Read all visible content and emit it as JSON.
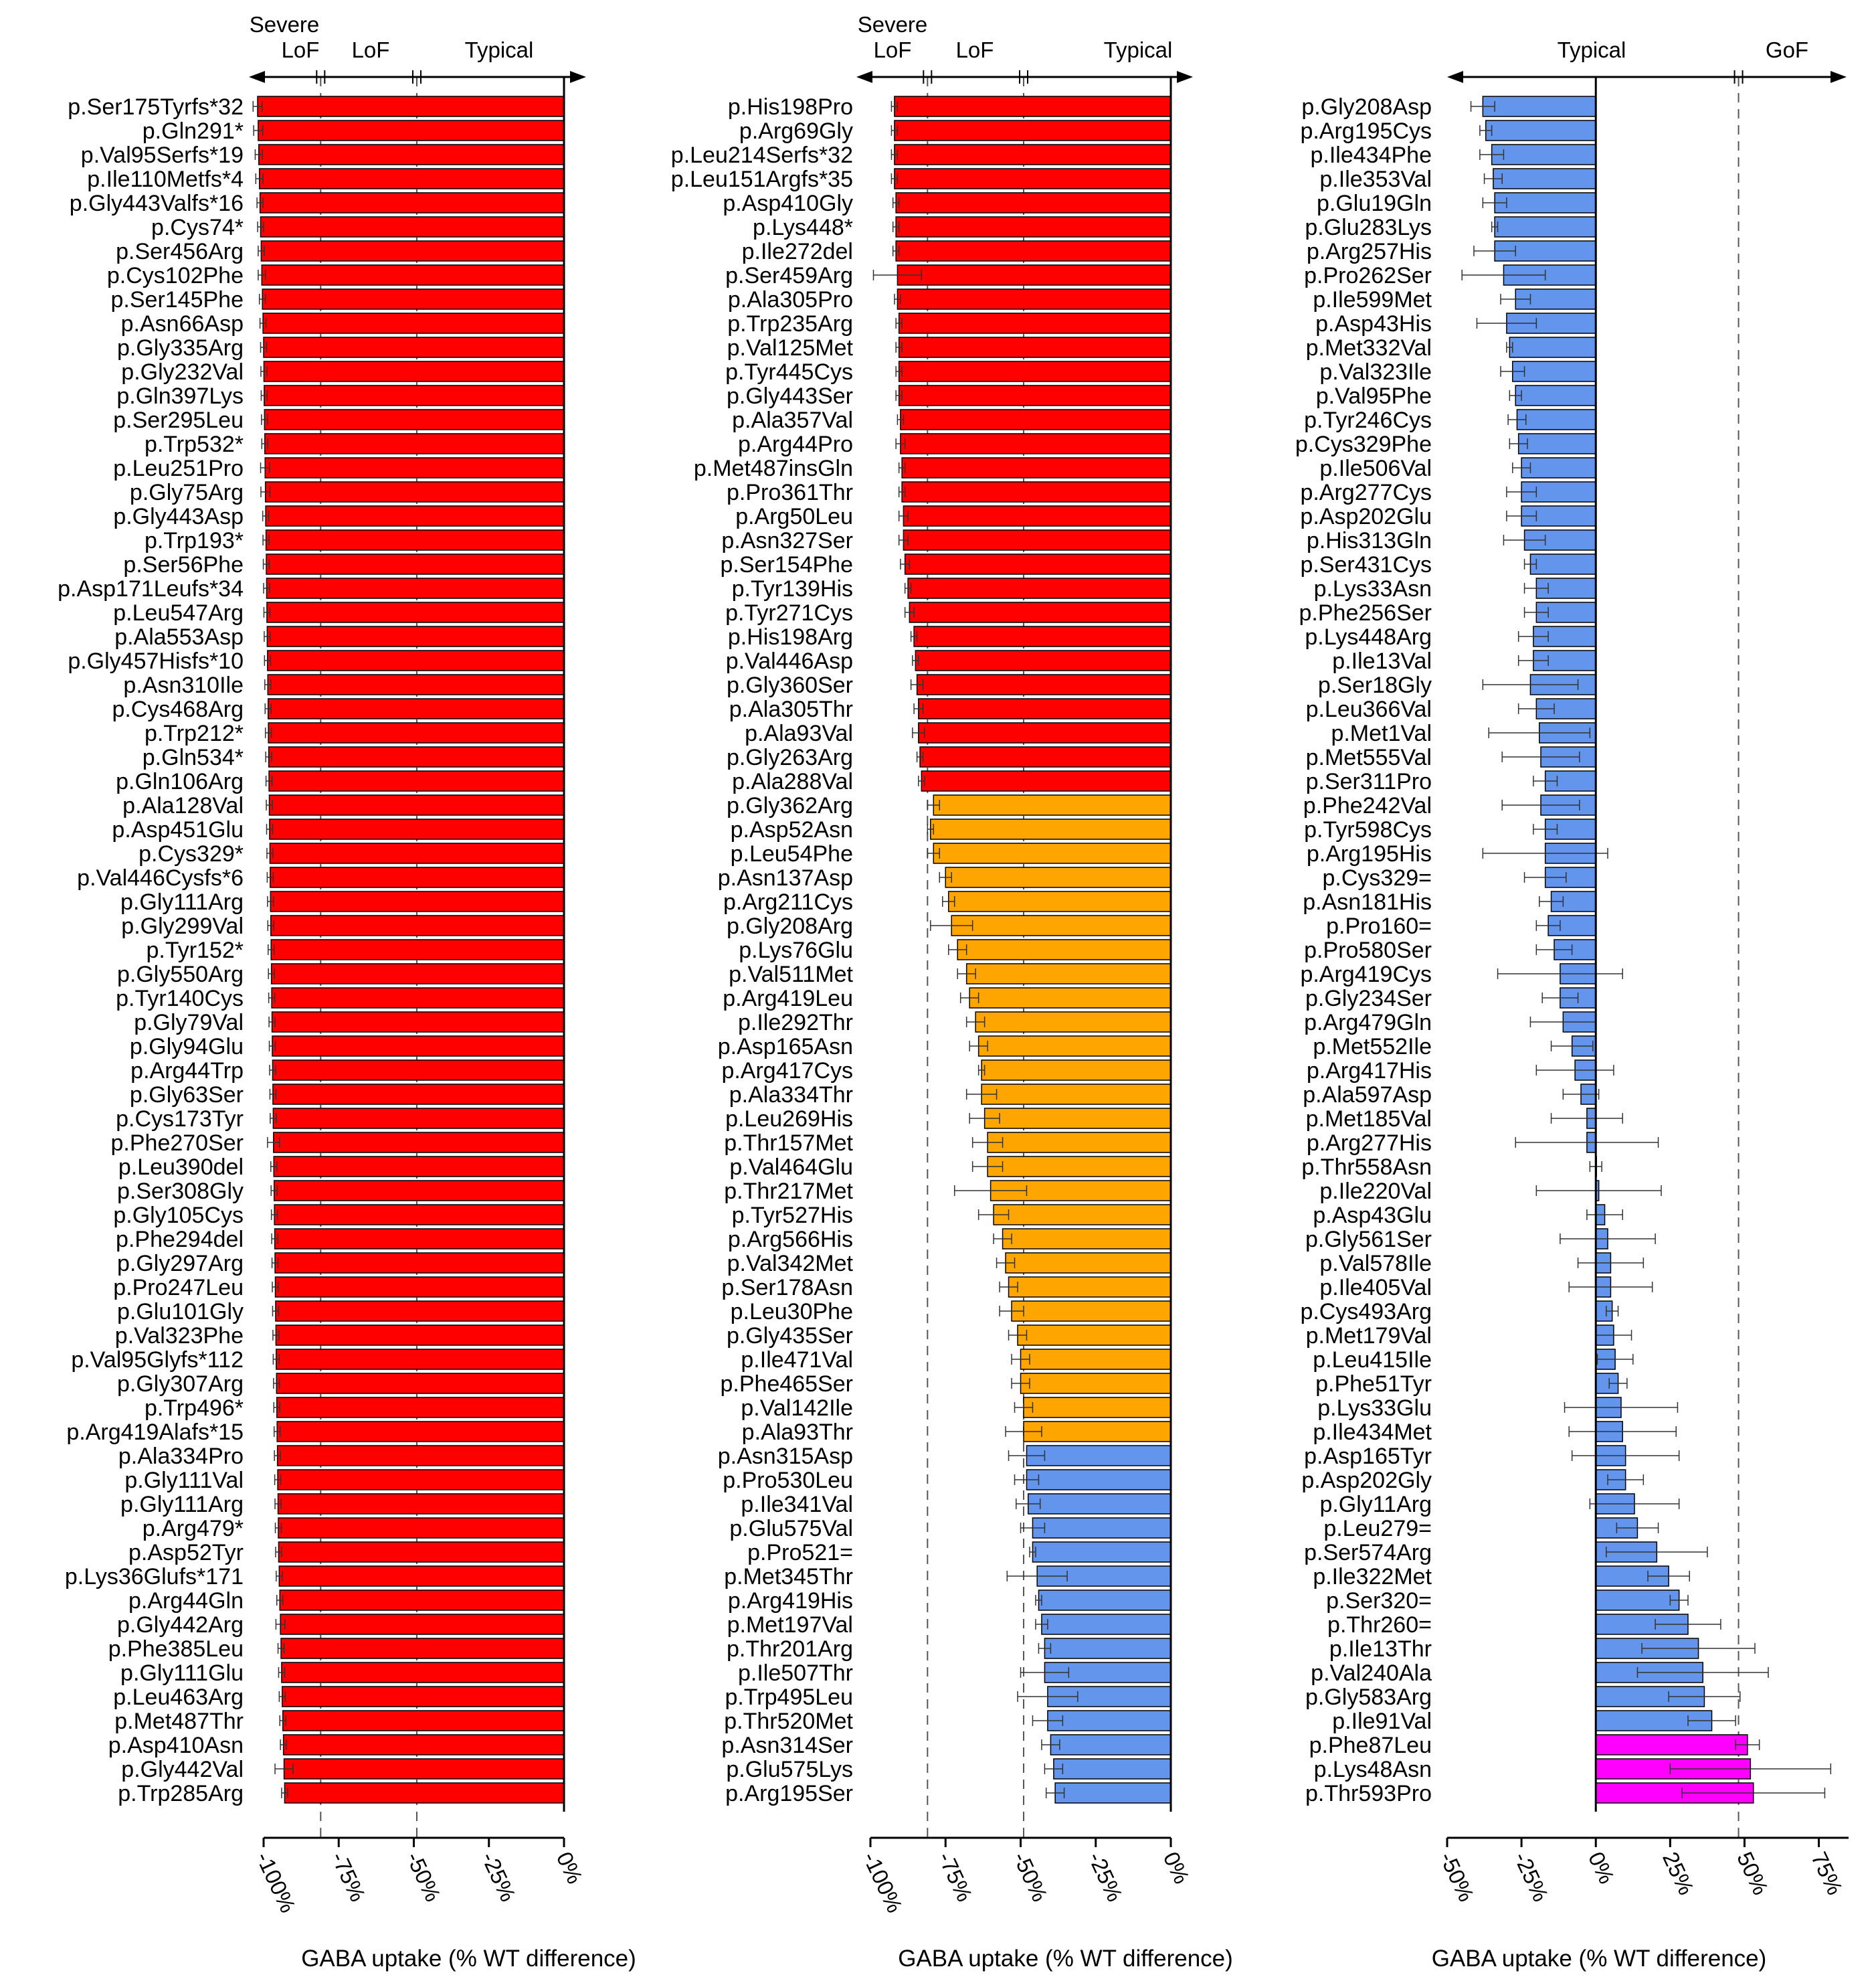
{
  "colors": {
    "red": "#ff0000",
    "orange": "#ffa500",
    "blue": "#6495ed",
    "magenta": "#ff00ff",
    "axis": "#000000",
    "dashed": "#555555"
  },
  "chart_data": [
    {
      "type": "bar",
      "orientation": "horizontal",
      "xlabel": "GABA uptake (% WT difference)",
      "xlim": [
        -100,
        0
      ],
      "xticks": [
        -100,
        -75,
        -50,
        -25,
        0
      ],
      "tick_labels": [
        "-100%",
        "-75%",
        "-50%",
        "-25%",
        "0%"
      ],
      "thresholds": [
        -81,
        -49
      ],
      "region_labels": [
        {
          "text": "Severe",
          "line": 1
        },
        {
          "text": "LoF",
          "line": 2
        },
        {
          "text": "LoF",
          "line": 2
        },
        {
          "text": "Typical",
          "line": 2
        }
      ],
      "categories": [
        "p.Ser175Tyrfs*32",
        "p.Gln291*",
        "p.Val95Serfs*19",
        "p.Ile110Metfs*4",
        "p.Gly443Valfs*16",
        "p.Cys74*",
        "p.Ser456Arg",
        "p.Cys102Phe",
        "p.Ser145Phe",
        "p.Asn66Asp",
        "p.Gly335Arg",
        "p.Gly232Val",
        "p.Gln397Lys",
        "p.Ser295Leu",
        "p.Trp532*",
        "p.Leu251Pro",
        "p.Gly75Arg",
        "p.Gly443Asp",
        "p.Trp193*",
        "p.Ser56Phe",
        "p.Asp171Leufs*34",
        "p.Leu547Arg",
        "p.Ala553Asp",
        "p.Gly457Hisfs*10",
        "p.Asn310Ile",
        "p.Cys468Arg",
        "p.Trp212*",
        "p.Gln534*",
        "p.Gln106Arg",
        "p.Ala128Val",
        "p.Asp451Glu",
        "p.Cys329*",
        "p.Val446Cysfs*6",
        "p.Gly111Arg",
        "p.Gly299Val",
        "p.Tyr152*",
        "p.Gly550Arg",
        "p.Tyr140Cys",
        "p.Gly79Val",
        "p.Gly94Glu",
        "p.Arg44Trp",
        "p.Gly63Ser",
        "p.Cys173Tyr",
        "p.Phe270Ser",
        "p.Leu390del",
        "p.Ser308Gly",
        "p.Gly105Cys",
        "p.Phe294del",
        "p.Gly297Arg",
        "p.Pro247Leu",
        "p.Glu101Gly",
        "p.Val323Phe",
        "p.Val95Glyfs*112",
        "p.Gly307Arg",
        "p.Trp496*",
        "p.Arg419Alafs*15",
        "p.Ala334Pro",
        "p.Gly111Val",
        "p.Gly111Arg",
        "p.Arg479*",
        "p.Asp52Tyr",
        "p.Lys36Glufs*171",
        "p.Arg44Gln",
        "p.Gly442Arg",
        "p.Phe385Leu",
        "p.Gly111Glu",
        "p.Leu463Arg",
        "p.Met487Thr",
        "p.Asp410Asn",
        "p.Gly442Val",
        "p.Trp285Arg"
      ],
      "values": [
        -102,
        -101.8,
        -101.6,
        -101.4,
        -101.2,
        -101,
        -100.8,
        -100.6,
        -100.4,
        -100.2,
        -100,
        -99.9,
        -99.8,
        -99.7,
        -99.6,
        -99.5,
        -99.4,
        -99.3,
        -99.2,
        -99.1,
        -99,
        -98.9,
        -98.8,
        -98.7,
        -98.6,
        -98.5,
        -98.4,
        -98.3,
        -98.2,
        -98.1,
        -98,
        -97.9,
        -97.8,
        -97.7,
        -97.6,
        -97.5,
        -97.4,
        -97.3,
        -97.2,
        -97.1,
        -97,
        -96.9,
        -96.8,
        -96.7,
        -96.6,
        -96.5,
        -96.4,
        -96.3,
        -96.2,
        -96.1,
        -96,
        -95.9,
        -95.8,
        -95.7,
        -95.6,
        -95.5,
        -95.4,
        -95.3,
        -95.2,
        -95.1,
        -95,
        -94.8,
        -94.6,
        -94.4,
        -94.2,
        -94,
        -93.8,
        -93.6,
        -93.4,
        -93.2,
        -93
      ],
      "errors": [
        1.5,
        1.5,
        1.2,
        1.2,
        1,
        1,
        1,
        1.2,
        1,
        1,
        1,
        1,
        1,
        1,
        1,
        1.5,
        1.5,
        1,
        1,
        1,
        1,
        1,
        1,
        1,
        1,
        1,
        1,
        1,
        1,
        1,
        1,
        1,
        1,
        1,
        1,
        1,
        1,
        1,
        1,
        1,
        1,
        1,
        1,
        2,
        1,
        1,
        1,
        1,
        1,
        1,
        1,
        1,
        1,
        1,
        1,
        1,
        1,
        1,
        1,
        1,
        1,
        1,
        1,
        1.5,
        1,
        1,
        1,
        1,
        1,
        3,
        1
      ],
      "colors": [
        "red",
        "red",
        "red",
        "red",
        "red",
        "red",
        "red",
        "red",
        "red",
        "red",
        "red",
        "red",
        "red",
        "red",
        "red",
        "red",
        "red",
        "red",
        "red",
        "red",
        "red",
        "red",
        "red",
        "red",
        "red",
        "red",
        "red",
        "red",
        "red",
        "red",
        "red",
        "red",
        "red",
        "red",
        "red",
        "red",
        "red",
        "red",
        "red",
        "red",
        "red",
        "red",
        "red",
        "red",
        "red",
        "red",
        "red",
        "red",
        "red",
        "red",
        "red",
        "red",
        "red",
        "red",
        "red",
        "red",
        "red",
        "red",
        "red",
        "red",
        "red",
        "red",
        "red",
        "red",
        "red",
        "red",
        "red",
        "red",
        "red",
        "red",
        "red"
      ]
    },
    {
      "type": "bar",
      "orientation": "horizontal",
      "xlabel": "GABA uptake (% WT difference)",
      "xlim": [
        -100,
        0
      ],
      "xticks": [
        -100,
        -75,
        -50,
        -25,
        0
      ],
      "tick_labels": [
        "-100%",
        "-75%",
        "-50%",
        "-25%",
        "0%"
      ],
      "thresholds": [
        -81,
        -49
      ],
      "region_labels": [
        {
          "text": "Severe",
          "line": 1
        },
        {
          "text": "LoF",
          "line": 2
        },
        {
          "text": "LoF",
          "line": 2
        },
        {
          "text": "Typical",
          "line": 2
        }
      ],
      "categories": [
        "p.His198Pro",
        "p.Arg69Gly",
        "p.Leu214Serfs*32",
        "p.Leu151Argfs*35",
        "p.Asp410Gly",
        "p.Lys448*",
        "p.Ile272del",
        "p.Ser459Arg",
        "p.Ala305Pro",
        "p.Trp235Arg",
        "p.Val125Met",
        "p.Tyr445Cys",
        "p.Gly443Ser",
        "p.Ala357Val",
        "p.Arg44Pro",
        "p.Met487insGln",
        "p.Pro361Thr",
        "p.Arg50Leu",
        "p.Asn327Ser",
        "p.Ser154Phe",
        "p.Tyr139His",
        "p.Tyr271Cys",
        "p.His198Arg",
        "p.Val446Asp",
        "p.Gly360Ser",
        "p.Ala305Thr",
        "p.Ala93Val",
        "p.Gly263Arg",
        "p.Ala288Val",
        "p.Gly362Arg",
        "p.Asp52Asn",
        "p.Leu54Phe",
        "p.Asn137Asp",
        "p.Arg211Cys",
        "p.Gly208Arg",
        "p.Lys76Glu",
        "p.Val511Met",
        "p.Arg419Leu",
        "p.Ile292Thr",
        "p.Asp165Asn",
        "p.Arg417Cys",
        "p.Ala334Thr",
        "p.Leu269His",
        "p.Thr157Met",
        "p.Val464Glu",
        "p.Thr217Met",
        "p.Tyr527His",
        "p.Arg566His",
        "p.Val342Met",
        "p.Ser178Asn",
        "p.Leu30Phe",
        "p.Gly435Ser",
        "p.Ile471Val",
        "p.Phe465Ser",
        "p.Val142Ile",
        "p.Ala93Thr",
        "p.Asn315Asp",
        "p.Pro530Leu",
        "p.Ile341Val",
        "p.Glu575Val",
        "p.Pro521=",
        "p.Met345Thr",
        "p.Arg419His",
        "p.Met197Val",
        "p.Thr201Arg",
        "p.Ile507Thr",
        "p.Trp495Leu",
        "p.Thr520Met",
        "p.Asn314Ser",
        "p.Glu575Lys",
        "p.Arg195Ser"
      ],
      "values": [
        -92,
        -92,
        -92,
        -92,
        -91.5,
        -91.5,
        -91.5,
        -91,
        -91,
        -90.5,
        -90.5,
        -90.5,
        -90.5,
        -90,
        -90,
        -89.5,
        -89.5,
        -89,
        -89,
        -88.5,
        -87.5,
        -87,
        -85.5,
        -85,
        -84.5,
        -84,
        -84,
        -83.5,
        -83,
        -79,
        -80,
        -79,
        -75,
        -74,
        -73,
        -71,
        -68,
        -67,
        -65,
        -64,
        -63,
        -63,
        -62,
        -61,
        -61,
        -60,
        -59,
        -56,
        -55,
        -54,
        -53,
        -51,
        -50,
        -50,
        -49,
        -49,
        -48,
        -48,
        -47.5,
        -46,
        -46,
        -44.5,
        -44,
        -43,
        -42,
        -42,
        -41,
        -41,
        -40,
        -39,
        -38.5
      ],
      "errors": [
        1,
        1,
        1,
        1,
        1,
        1,
        1,
        8,
        1,
        1,
        1,
        1,
        1,
        1,
        1.5,
        1,
        1,
        1.5,
        1.5,
        1.5,
        1,
        1.5,
        1,
        1,
        2,
        1.5,
        2,
        1,
        1,
        2,
        1,
        2,
        2,
        2,
        7,
        3,
        3,
        3,
        3,
        3,
        1,
        5,
        5,
        5,
        5,
        12,
        5,
        3,
        3,
        3,
        4,
        3,
        3,
        3,
        3,
        6,
        6,
        4,
        4,
        4,
        1,
        10,
        1,
        2,
        2,
        8,
        10,
        5,
        3,
        3,
        3
      ],
      "colors": [
        "red",
        "red",
        "red",
        "red",
        "red",
        "red",
        "red",
        "red",
        "red",
        "red",
        "red",
        "red",
        "red",
        "red",
        "red",
        "red",
        "red",
        "red",
        "red",
        "red",
        "red",
        "red",
        "red",
        "red",
        "red",
        "red",
        "red",
        "red",
        "red",
        "orange",
        "orange",
        "orange",
        "orange",
        "orange",
        "orange",
        "orange",
        "orange",
        "orange",
        "orange",
        "orange",
        "orange",
        "orange",
        "orange",
        "orange",
        "orange",
        "orange",
        "orange",
        "orange",
        "orange",
        "orange",
        "orange",
        "orange",
        "orange",
        "orange",
        "orange",
        "orange",
        "blue",
        "blue",
        "blue",
        "blue",
        "blue",
        "blue",
        "blue",
        "blue",
        "blue",
        "blue",
        "blue",
        "blue",
        "blue",
        "blue",
        "blue"
      ]
    },
    {
      "type": "bar",
      "orientation": "horizontal",
      "xlabel": "GABA uptake (% WT difference)",
      "xlim": [
        -50,
        85
      ],
      "xticks": [
        -50,
        -25,
        0,
        25,
        50,
        75
      ],
      "tick_labels": [
        "-50%",
        "-25%",
        "0%",
        "25%",
        "50%",
        "75%"
      ],
      "thresholds": [
        48
      ],
      "region_labels": [
        {
          "text": "Typical",
          "line": 2
        },
        {
          "text": "GoF",
          "line": 2
        }
      ],
      "categories": [
        "p.Gly208Asp",
        "p.Arg195Cys",
        "p.Ile434Phe",
        "p.Ile353Val",
        "p.Glu19Gln",
        "p.Glu283Lys",
        "p.Arg257His",
        "p.Pro262Ser",
        "p.Ile599Met",
        "p.Asp43His",
        "p.Met332Val",
        "p.Val323Ile",
        "p.Val95Phe",
        "p.Tyr246Cys",
        "p.Cys329Phe",
        "p.Ile506Val",
        "p.Arg277Cys",
        "p.Asp202Glu",
        "p.His313Gln",
        "p.Ser431Cys",
        "p.Lys33Asn",
        "p.Phe256Ser",
        "p.Lys448Arg",
        "p.Ile13Val",
        "p.Ser18Gly",
        "p.Leu366Val",
        "p.Met1Val",
        "p.Met555Val",
        "p.Ser311Pro",
        "p.Phe242Val",
        "p.Tyr598Cys",
        "p.Arg195His",
        "p.Cys329=",
        "p.Asn181His",
        "p.Pro160=",
        "p.Pro580Ser",
        "p.Arg419Cys",
        "p.Gly234Ser",
        "p.Arg479Gln",
        "p.Met552Ile",
        "p.Arg417His",
        "p.Ala597Asp",
        "p.Met185Val",
        "p.Arg277His",
        "p.Thr558Asn",
        "p.Ile220Val",
        "p.Asp43Glu",
        "p.Gly561Ser",
        "p.Val578Ile",
        "p.Ile405Val",
        "p.Cys493Arg",
        "p.Met179Val",
        "p.Leu415Ile",
        "p.Phe51Tyr",
        "p.Lys33Glu",
        "p.Ile434Met",
        "p.Asp165Tyr",
        "p.Asp202Gly",
        "p.Gly11Arg",
        "p.Leu279=",
        "p.Ser574Arg",
        "p.Ile322Met",
        "p.Ser320=",
        "p.Thr260=",
        "p.Ile13Thr",
        "p.Val240Ala",
        "p.Gly583Arg",
        "p.Ile91Val",
        "p.Phe87Leu",
        "p.Lys48Asn",
        "p.Thr593Pro"
      ],
      "values": [
        -38,
        -37,
        -35,
        -34.5,
        -34,
        -34,
        -34,
        -31,
        -27,
        -30,
        -29,
        -28,
        -27,
        -26.5,
        -26,
        -25,
        -25,
        -25,
        -24,
        -22,
        -20,
        -20,
        -21,
        -21,
        -22,
        -20,
        -19,
        -18.5,
        -17,
        -18.5,
        -17,
        -17,
        -17,
        -15,
        -16,
        -14,
        -12,
        -12,
        -11,
        -8,
        -7,
        -5,
        -3,
        -3,
        0,
        1,
        3,
        4,
        5,
        5,
        5.5,
        6,
        6.5,
        7.5,
        8.5,
        9,
        10,
        10,
        13,
        14,
        20.5,
        24.5,
        28,
        31,
        34.5,
        36,
        36.5,
        39,
        51,
        52,
        53
      ],
      "errors": [
        4,
        2,
        4,
        3,
        4,
        1,
        7,
        14,
        5,
        10,
        1,
        4,
        2,
        3,
        3,
        3,
        5,
        5,
        7,
        2,
        4,
        4,
        5,
        5,
        16,
        6,
        17,
        13,
        4,
        13,
        4,
        21,
        7,
        4,
        4,
        6,
        21,
        6,
        11,
        7,
        13,
        6,
        12,
        24,
        2,
        21,
        6,
        16,
        11,
        14,
        2,
        6,
        6,
        3,
        19,
        18,
        18,
        6,
        15,
        7,
        17,
        7,
        3,
        11,
        19,
        22,
        12,
        8,
        4,
        27,
        24
      ],
      "colors": [
        "blue",
        "blue",
        "blue",
        "blue",
        "blue",
        "blue",
        "blue",
        "blue",
        "blue",
        "blue",
        "blue",
        "blue",
        "blue",
        "blue",
        "blue",
        "blue",
        "blue",
        "blue",
        "blue",
        "blue",
        "blue",
        "blue",
        "blue",
        "blue",
        "blue",
        "blue",
        "blue",
        "blue",
        "blue",
        "blue",
        "blue",
        "blue",
        "blue",
        "blue",
        "blue",
        "blue",
        "blue",
        "blue",
        "blue",
        "blue",
        "blue",
        "blue",
        "blue",
        "blue",
        "blue",
        "blue",
        "blue",
        "blue",
        "blue",
        "blue",
        "blue",
        "blue",
        "blue",
        "blue",
        "blue",
        "blue",
        "blue",
        "blue",
        "blue",
        "blue",
        "blue",
        "blue",
        "blue",
        "blue",
        "blue",
        "blue",
        "blue",
        "blue",
        "magenta",
        "magenta",
        "magenta"
      ]
    }
  ]
}
